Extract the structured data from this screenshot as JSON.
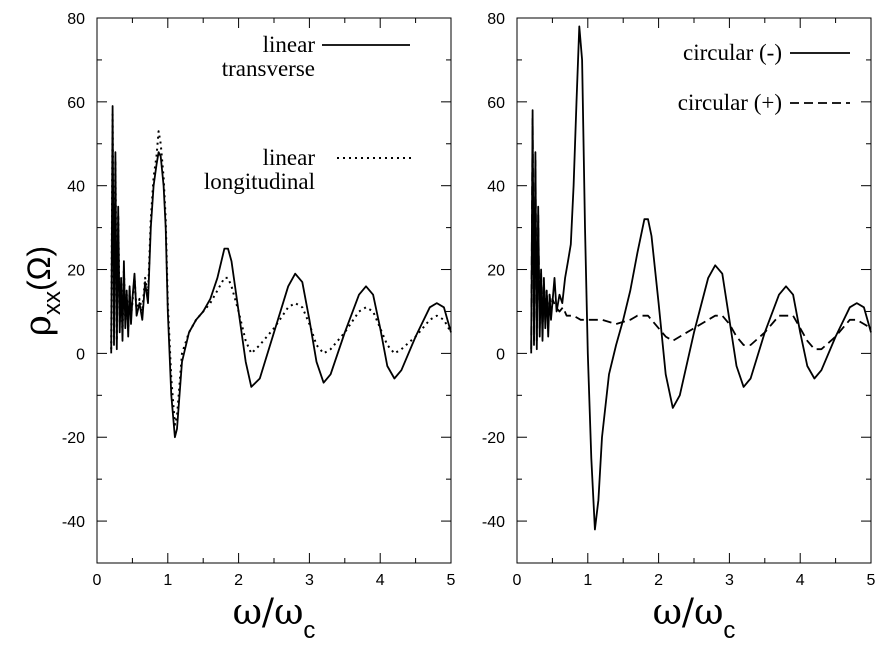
{
  "figure": {
    "ylabel": {
      "main": "ρ",
      "sub": "xx",
      "unit": "(Ω)"
    },
    "xlabel": {
      "main": "ω/ω",
      "sub": "c"
    }
  },
  "chart_data": [
    {
      "type": "line",
      "panel": "left",
      "xlim": [
        0,
        5
      ],
      "ylim": [
        -50,
        80
      ],
      "xticks": [
        0,
        1,
        2,
        3,
        4,
        5
      ],
      "yticks": [
        -40,
        -20,
        0,
        20,
        40,
        60,
        80
      ],
      "xtick_labels": [
        "0",
        "1",
        "2",
        "3",
        "4",
        "5"
      ],
      "ytick_labels": [
        "-40",
        "-20",
        "0",
        "20",
        "40",
        "60",
        "80"
      ],
      "grid": false,
      "legend_position": "top-right",
      "series": [
        {
          "name_lines": [
            "linear",
            "transverse"
          ],
          "style": "solid",
          "color": "#000000",
          "x": [
            0.2,
            0.22,
            0.24,
            0.26,
            0.28,
            0.3,
            0.32,
            0.34,
            0.36,
            0.38,
            0.4,
            0.42,
            0.44,
            0.46,
            0.48,
            0.5,
            0.53,
            0.56,
            0.6,
            0.64,
            0.68,
            0.72,
            0.76,
            0.8,
            0.84,
            0.87,
            0.9,
            0.94,
            0.97,
            1.0,
            1.05,
            1.1,
            1.13,
            1.2,
            1.3,
            1.4,
            1.5,
            1.6,
            1.7,
            1.8,
            1.85,
            1.9,
            2.0,
            2.1,
            2.18,
            2.3,
            2.5,
            2.7,
            2.8,
            2.9,
            3.0,
            3.1,
            3.2,
            3.3,
            3.5,
            3.7,
            3.8,
            3.9,
            4.0,
            4.1,
            4.2,
            4.3,
            4.5,
            4.7,
            4.8,
            4.9,
            5.0
          ],
          "y": [
            0,
            59,
            2,
            48,
            1,
            35,
            5,
            18,
            3,
            22,
            6,
            15,
            4,
            16,
            7,
            13,
            19,
            9,
            12,
            8,
            17,
            12,
            30,
            40,
            45,
            48,
            47,
            40,
            30,
            10,
            -10,
            -20,
            -18,
            -2,
            5,
            8,
            10,
            13,
            18,
            25,
            25,
            22,
            10,
            -2,
            -8,
            -6,
            5,
            16,
            19,
            17,
            8,
            -2,
            -7,
            -5,
            5,
            14,
            16,
            14,
            6,
            -3,
            -6,
            -4,
            4,
            11,
            12,
            11,
            5
          ]
        },
        {
          "name_lines": [
            "linear",
            "longitudinal"
          ],
          "style": "dotted",
          "color": "#000000",
          "x": [
            0.2,
            0.22,
            0.24,
            0.26,
            0.28,
            0.3,
            0.32,
            0.34,
            0.36,
            0.38,
            0.4,
            0.42,
            0.44,
            0.46,
            0.48,
            0.5,
            0.53,
            0.56,
            0.6,
            0.64,
            0.68,
            0.72,
            0.76,
            0.8,
            0.84,
            0.87,
            0.9,
            0.94,
            0.97,
            1.0,
            1.05,
            1.1,
            1.13,
            1.2,
            1.3,
            1.4,
            1.5,
            1.6,
            1.7,
            1.8,
            1.85,
            1.9,
            2.0,
            2.1,
            2.18,
            2.3,
            2.5,
            2.7,
            2.8,
            2.9,
            3.0,
            3.1,
            3.2,
            3.3,
            3.5,
            3.7,
            3.8,
            3.9,
            4.0,
            4.1,
            4.2,
            4.3,
            4.5,
            4.7,
            4.8,
            4.9,
            5.0
          ],
          "y": [
            1,
            57,
            4,
            46,
            3,
            33,
            7,
            17,
            5,
            20,
            8,
            14,
            6,
            15,
            9,
            12,
            18,
            10,
            13,
            10,
            18,
            14,
            32,
            42,
            47,
            53,
            50,
            42,
            32,
            12,
            -6,
            -17,
            -15,
            0,
            5,
            8,
            10,
            12,
            15,
            18,
            18,
            16,
            10,
            3,
            0,
            2,
            6,
            11,
            12,
            11,
            7,
            2,
            0,
            1,
            5,
            10,
            11,
            10,
            6,
            2,
            0,
            1,
            4,
            8,
            9,
            8,
            5
          ]
        }
      ]
    },
    {
      "type": "line",
      "panel": "right",
      "xlim": [
        0,
        5
      ],
      "ylim": [
        -50,
        80
      ],
      "xticks": [
        0,
        1,
        2,
        3,
        4,
        5
      ],
      "yticks": [
        -40,
        -20,
        0,
        20,
        40,
        60,
        80
      ],
      "xtick_labels": [
        "0",
        "1",
        "2",
        "3",
        "4",
        "5"
      ],
      "ytick_labels": [
        "-40",
        "-20",
        "0",
        "20",
        "40",
        "60",
        "80"
      ],
      "grid": false,
      "legend_position": "top-right",
      "series": [
        {
          "name_lines": [
            "circular (-)"
          ],
          "style": "solid",
          "color": "#000000",
          "x": [
            0.2,
            0.22,
            0.24,
            0.26,
            0.28,
            0.3,
            0.32,
            0.34,
            0.36,
            0.38,
            0.4,
            0.42,
            0.44,
            0.46,
            0.48,
            0.5,
            0.53,
            0.56,
            0.6,
            0.64,
            0.68,
            0.72,
            0.76,
            0.8,
            0.84,
            0.88,
            0.92,
            0.96,
            1.0,
            1.05,
            1.1,
            1.15,
            1.2,
            1.3,
            1.4,
            1.5,
            1.6,
            1.7,
            1.8,
            1.85,
            1.9,
            2.0,
            2.1,
            2.2,
            2.3,
            2.5,
            2.7,
            2.8,
            2.9,
            3.0,
            3.1,
            3.2,
            3.3,
            3.5,
            3.7,
            3.8,
            3.9,
            4.0,
            4.1,
            4.2,
            4.3,
            4.5,
            4.7,
            4.8,
            4.9,
            5.0
          ],
          "y": [
            0,
            58,
            2,
            48,
            1,
            35,
            4,
            20,
            3,
            18,
            6,
            15,
            4,
            14,
            8,
            12,
            18,
            10,
            14,
            12,
            18,
            22,
            26,
            40,
            60,
            78,
            70,
            30,
            0,
            -25,
            -42,
            -35,
            -20,
            -5,
            2,
            8,
            15,
            24,
            32,
            32,
            28,
            12,
            -5,
            -13,
            -10,
            5,
            18,
            21,
            19,
            8,
            -3,
            -8,
            -6,
            5,
            14,
            16,
            14,
            5,
            -3,
            -6,
            -4,
            4,
            11,
            12,
            11,
            5
          ]
        },
        {
          "name_lines": [
            "circular (+)"
          ],
          "style": "dashed",
          "color": "#000000",
          "x": [
            0.2,
            0.22,
            0.24,
            0.26,
            0.28,
            0.3,
            0.32,
            0.34,
            0.36,
            0.38,
            0.4,
            0.42,
            0.44,
            0.46,
            0.48,
            0.5,
            0.55,
            0.6,
            0.65,
            0.7,
            0.8,
            0.9,
            1.0,
            1.1,
            1.2,
            1.4,
            1.6,
            1.7,
            1.8,
            1.85,
            1.9,
            2.0,
            2.1,
            2.2,
            2.3,
            2.5,
            2.7,
            2.8,
            2.9,
            3.0,
            3.1,
            3.2,
            3.3,
            3.5,
            3.7,
            3.8,
            3.9,
            4.0,
            4.1,
            4.2,
            4.3,
            4.5,
            4.7,
            4.8,
            4.9,
            5.0
          ],
          "y": [
            1,
            56,
            3,
            46,
            3,
            33,
            6,
            19,
            5,
            17,
            8,
            15,
            7,
            14,
            10,
            13,
            11,
            10,
            11,
            9,
            9,
            8,
            8,
            8,
            8,
            7,
            8,
            9,
            9,
            9,
            8,
            6,
            4,
            3,
            4,
            6,
            8,
            9,
            9,
            7,
            4,
            2,
            2,
            5,
            9,
            9,
            9,
            6,
            3,
            1,
            1,
            4,
            8,
            8,
            7,
            6
          ]
        }
      ]
    }
  ]
}
